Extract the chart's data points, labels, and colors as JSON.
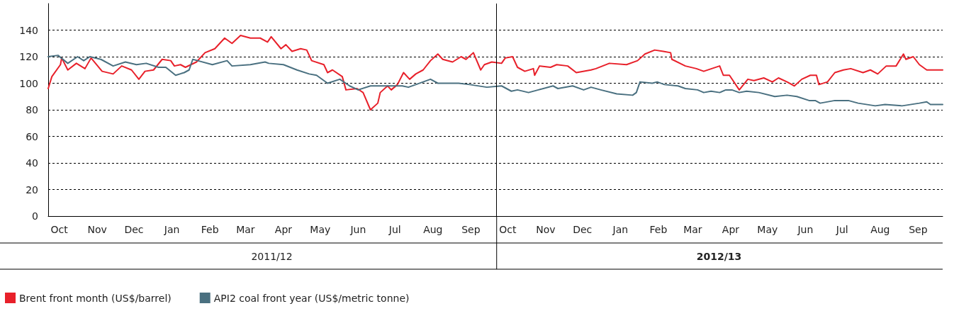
{
  "chart_data": {
    "type": "line",
    "xlim": [
      "2011-10-01",
      "2013-09-30"
    ],
    "xticks": [
      {
        "value": "2011-10-10",
        "label": "Oct"
      },
      {
        "value": "2011-11-10",
        "label": "Nov"
      },
      {
        "value": "2011-12-10",
        "label": "Dec"
      },
      {
        "value": "2012-01-10",
        "label": "Jan"
      },
      {
        "value": "2012-02-10",
        "label": "Feb"
      },
      {
        "value": "2012-03-10",
        "label": "Mar"
      },
      {
        "value": "2012-04-10",
        "label": "Apr"
      },
      {
        "value": "2012-05-10",
        "label": "May"
      },
      {
        "value": "2012-06-10",
        "label": "Jun"
      },
      {
        "value": "2012-07-10",
        "label": "Jul"
      },
      {
        "value": "2012-08-10",
        "label": "Aug"
      },
      {
        "value": "2012-09-10",
        "label": "Sep"
      },
      {
        "value": "2012-10-10",
        "label": "Oct"
      },
      {
        "value": "2012-11-10",
        "label": "Nov"
      },
      {
        "value": "2012-12-10",
        "label": "Dec"
      },
      {
        "value": "2013-01-10",
        "label": "Jan"
      },
      {
        "value": "2013-02-10",
        "label": "Feb"
      },
      {
        "value": "2013-03-10",
        "label": "Mar"
      },
      {
        "value": "2013-04-10",
        "label": "Apr"
      },
      {
        "value": "2013-05-10",
        "label": "May"
      },
      {
        "value": "2013-06-10",
        "label": "Jun"
      },
      {
        "value": "2013-07-10",
        "label": "Jul"
      },
      {
        "value": "2013-08-10",
        "label": "Aug"
      },
      {
        "value": "2013-09-10",
        "label": "Sep"
      }
    ],
    "ylim": [
      0,
      160
    ],
    "yticks": [
      0,
      20,
      40,
      60,
      80,
      100,
      120,
      140
    ],
    "grid": "y",
    "legend": "bottom left",
    "marker": "none",
    "line_style": "solid",
    "ref_lines": [
      {
        "axis": "x",
        "value": "2012-10-01",
        "color": "#000000"
      }
    ],
    "annotations": [
      "2011/12",
      "2012/13"
    ],
    "series": [
      {
        "name": "Brent front month (US$/barrel)",
        "color": "#e8202a",
        "x": [
          "2011-10-01",
          "2011-10-04",
          "2011-10-11",
          "2011-10-12",
          "2011-10-17",
          "2011-10-24",
          "2011-10-31",
          "2011-11-05",
          "2011-11-14",
          "2011-11-23",
          "2011-11-30",
          "2011-12-08",
          "2011-12-14",
          "2011-12-19",
          "2011-12-26",
          "2012-01-02",
          "2012-01-09",
          "2012-01-12",
          "2012-01-17",
          "2012-01-21",
          "2012-01-30",
          "2012-02-06",
          "2012-02-14",
          "2012-02-22",
          "2012-02-28",
          "2012-03-06",
          "2012-03-14",
          "2012-03-22",
          "2012-03-28",
          "2012-03-31",
          "2012-04-08",
          "2012-04-12",
          "2012-04-17",
          "2012-04-24",
          "2012-04-29",
          "2012-05-03",
          "2012-05-13",
          "2012-05-16",
          "2012-05-20",
          "2012-05-28",
          "2012-05-31",
          "2012-06-09",
          "2012-06-14",
          "2012-06-20",
          "2012-06-26",
          "2012-06-28",
          "2012-07-04",
          "2012-07-07",
          "2012-07-12",
          "2012-07-17",
          "2012-07-22",
          "2012-07-27",
          "2012-08-02",
          "2012-08-08",
          "2012-08-14",
          "2012-08-18",
          "2012-08-26",
          "2012-09-02",
          "2012-09-06",
          "2012-09-12",
          "2012-09-18",
          "2012-09-21",
          "2012-09-27",
          "2012-10-05",
          "2012-10-08",
          "2012-10-14",
          "2012-10-18",
          "2012-10-24",
          "2012-10-31",
          "2012-11-01",
          "2012-11-05",
          "2012-11-14",
          "2012-11-19",
          "2012-11-28",
          "2012-12-05",
          "2012-12-17",
          "2012-12-21",
          "2013-01-01",
          "2013-01-15",
          "2013-01-24",
          "2013-01-30",
          "2013-02-07",
          "2013-02-14",
          "2013-02-20",
          "2013-02-21",
          "2013-03-04",
          "2013-03-13",
          "2013-03-19",
          "2013-04-01",
          "2013-04-04",
          "2013-04-09",
          "2013-04-17",
          "2013-04-24",
          "2013-04-29",
          "2013-05-07",
          "2013-05-14",
          "2013-05-19",
          "2013-05-26",
          "2013-06-01",
          "2013-06-07",
          "2013-06-14",
          "2013-06-19",
          "2013-06-21",
          "2013-06-28",
          "2013-07-04",
          "2013-07-11",
          "2013-07-17",
          "2013-07-27",
          "2013-08-02",
          "2013-08-08",
          "2013-08-15",
          "2013-08-23",
          "2013-08-29",
          "2013-08-31",
          "2013-09-06",
          "2013-09-11",
          "2013-09-17",
          "2013-09-30"
        ],
        "values": [
          96,
          105,
          114,
          119,
          110,
          115,
          111,
          119,
          109,
          107,
          113,
          110,
          103,
          109,
          110,
          118,
          117,
          113,
          114,
          112,
          116,
          123,
          126,
          134,
          130,
          136,
          134,
          134,
          131,
          135,
          126,
          129,
          124,
          126,
          125,
          117,
          114,
          108,
          110,
          105,
          95,
          96,
          93,
          80,
          85,
          93,
          98,
          95,
          99,
          108,
          103,
          107,
          110,
          117,
          122,
          118,
          116,
          120,
          118,
          123,
          110,
          114,
          116,
          115,
          119,
          120,
          112,
          109,
          111,
          106,
          113,
          112,
          114,
          113,
          108,
          110,
          111,
          115,
          114,
          117,
          122,
          125,
          124,
          123,
          118,
          113,
          111,
          109,
          113,
          106,
          106,
          95,
          103,
          102,
          104,
          101,
          104,
          101,
          98,
          103,
          106,
          106,
          99,
          101,
          108,
          110,
          111,
          108,
          110,
          107,
          113,
          113,
          122,
          118,
          120,
          114,
          110,
          110
        ]
      },
      {
        "name": "API2 coal front year (US$/metric tonne)",
        "color": "#4a7080",
        "x": [
          "2011-10-01",
          "2011-10-09",
          "2011-10-17",
          "2011-10-25",
          "2011-10-30",
          "2011-11-04",
          "2011-11-13",
          "2011-11-23",
          "2011-12-03",
          "2011-12-12",
          "2011-12-20",
          "2011-12-30",
          "2012-01-05",
          "2012-01-13",
          "2012-01-20",
          "2012-01-24",
          "2012-01-27",
          "2012-01-31",
          "2012-02-12",
          "2012-02-24",
          "2012-02-28",
          "2012-03-14",
          "2012-03-26",
          "2012-03-29",
          "2012-04-10",
          "2012-04-21",
          "2012-05-01",
          "2012-05-07",
          "2012-05-16",
          "2012-05-26",
          "2012-06-03",
          "2012-06-10",
          "2012-06-20",
          "2012-07-06",
          "2012-07-16",
          "2012-07-21",
          "2012-08-08",
          "2012-08-14",
          "2012-08-31",
          "2012-09-09",
          "2012-09-23",
          "2012-10-05",
          "2012-10-13",
          "2012-10-18",
          "2012-10-27",
          "2012-11-04",
          "2012-11-16",
          "2012-11-20",
          "2012-12-02",
          "2012-12-11",
          "2012-12-17",
          "2012-12-25",
          "2013-01-07",
          "2013-01-20",
          "2013-01-23",
          "2013-01-26",
          "2013-02-05",
          "2013-02-09",
          "2013-02-15",
          "2013-02-26",
          "2013-03-04",
          "2013-03-14",
          "2013-03-19",
          "2013-03-25",
          "2013-04-01",
          "2013-04-06",
          "2013-04-11",
          "2013-04-17",
          "2013-04-23",
          "2013-05-03",
          "2013-05-16",
          "2013-05-26",
          "2013-06-03",
          "2013-06-13",
          "2013-06-18",
          "2013-06-22",
          "2013-07-04",
          "2013-07-15",
          "2013-07-23",
          "2013-08-06",
          "2013-08-14",
          "2013-08-28",
          "2013-09-11",
          "2013-09-17",
          "2013-09-20",
          "2013-09-30"
        ],
        "values": [
          120,
          121,
          115,
          120,
          117,
          120,
          118,
          113,
          116,
          114,
          115,
          112,
          112,
          106,
          108,
          110,
          118,
          117,
          114,
          117,
          113,
          114,
          116,
          115,
          114,
          110,
          107,
          106,
          100,
          103,
          98,
          95,
          98,
          98,
          98,
          97,
          103,
          100,
          100,
          99,
          97,
          98,
          94,
          95,
          93,
          95,
          98,
          96,
          98,
          95,
          97,
          95,
          92,
          91,
          93,
          101,
          100,
          101,
          99,
          98,
          96,
          95,
          93,
          94,
          93,
          95,
          95,
          93,
          94,
          93,
          90,
          91,
          90,
          87,
          87,
          85,
          87,
          87,
          85,
          83,
          84,
          83,
          85,
          86,
          84,
          84
        ]
      }
    ]
  }
}
